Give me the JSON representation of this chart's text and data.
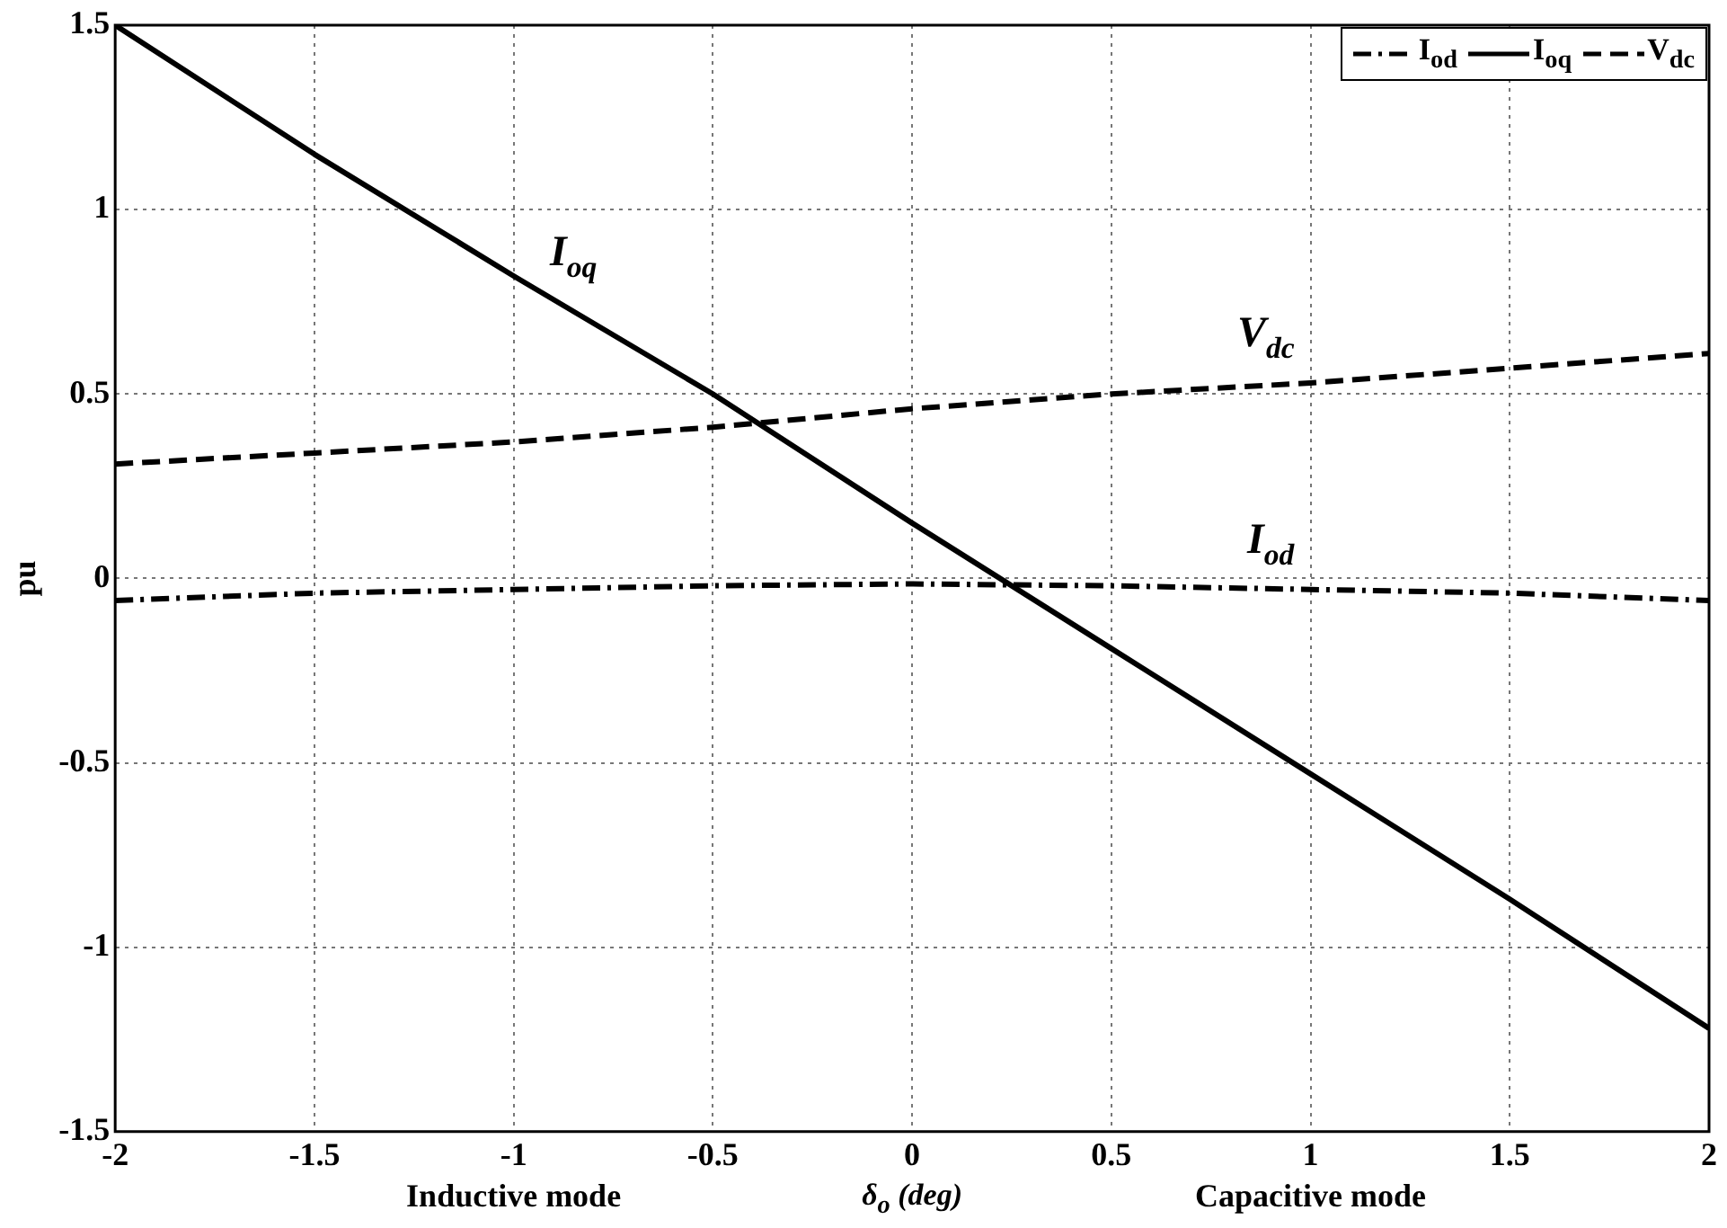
{
  "chart_data": {
    "type": "line",
    "xlabel": "δ$_{o}$ (deg)",
    "ylabel": "pu",
    "x": [
      -2,
      -1.5,
      -1,
      -0.5,
      0,
      0.5,
      1,
      1.5,
      2
    ],
    "series": [
      {
        "name": "I$_{od}$",
        "color": "#000000",
        "line_style": "dashdot",
        "values": [
          -0.06,
          -0.04,
          -0.03,
          -0.02,
          -0.015,
          -0.02,
          -0.03,
          -0.04,
          -0.06
        ]
      },
      {
        "name": "I$_{oq}$",
        "color": "#000000",
        "line_style": "solid",
        "values": [
          1.5,
          1.15,
          0.82,
          0.5,
          0.15,
          -0.19,
          -0.53,
          -0.87,
          -1.22
        ]
      },
      {
        "name": "V$_{dc}$",
        "color": "#000000",
        "line_style": "dashed",
        "values": [
          0.31,
          0.34,
          0.37,
          0.41,
          0.46,
          0.5,
          0.53,
          0.57,
          0.61
        ]
      }
    ],
    "xlim": [
      -2,
      2
    ],
    "xticks": [
      -2,
      -1.5,
      -1,
      -0.5,
      0,
      0.5,
      1,
      1.5,
      2
    ],
    "ylim": [
      -1.5,
      1.5
    ],
    "yticks": [
      -1.5,
      -1,
      -0.5,
      0,
      0.5,
      1,
      1.5
    ],
    "grid": true,
    "legend": "top right",
    "marker": "none",
    "annotations": [
      "Inductive mode",
      "Capacitive mode"
    ]
  }
}
